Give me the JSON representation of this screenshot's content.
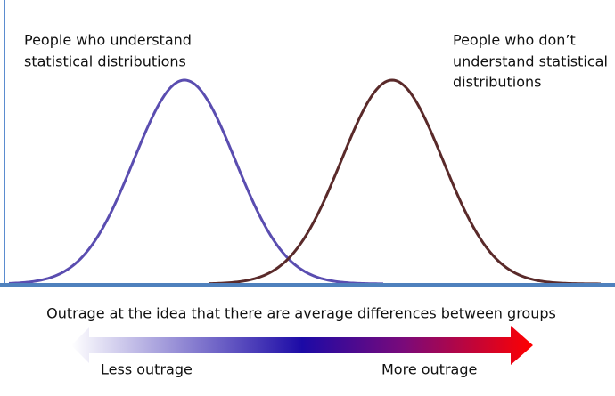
{
  "groups": {
    "left": {
      "lines": [
        "People who understand",
        "statistical distributions"
      ]
    },
    "right": {
      "lines": [
        "People who don’t",
        "understand statistical",
        "distributions"
      ]
    }
  },
  "axis_caption": "Outrage at the idea that there are average differences between groups",
  "scale": {
    "low": "Less outrage",
    "high": "More outrage"
  }
}
